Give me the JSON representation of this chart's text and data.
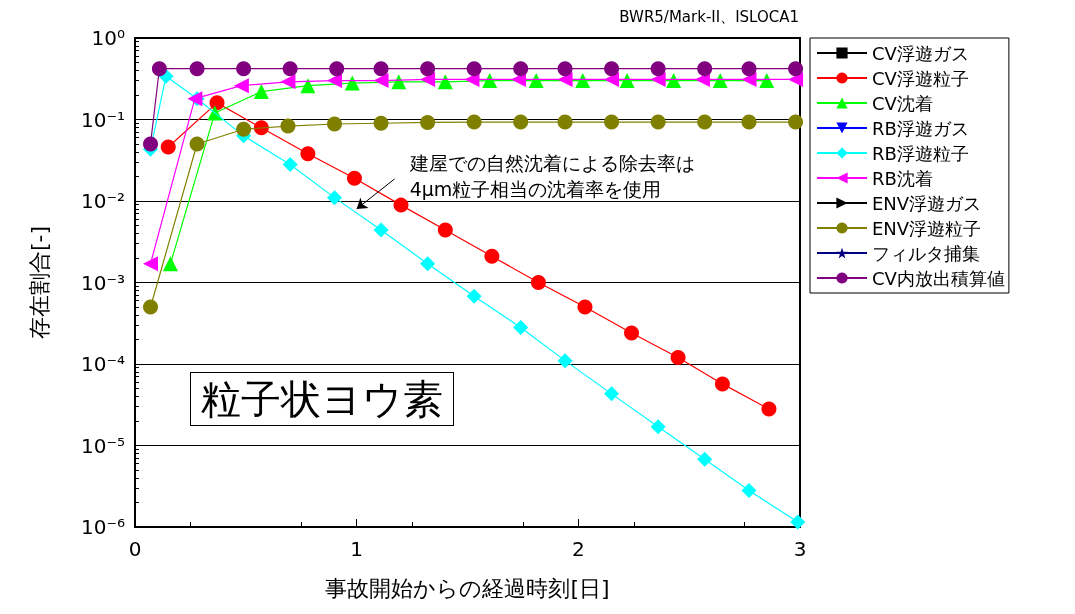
{
  "chart_data": {
    "type": "line",
    "subtitle": "BWR5/Mark-II、ISLOCA1",
    "xlabel": "事故開始からの経過時刻[日]",
    "ylabel": "存在割合[-]",
    "xlim": [
      0,
      3
    ],
    "xticks": [
      0,
      1,
      2,
      3
    ],
    "ylim": [
      1e-06,
      1
    ],
    "yticks": [
      {
        "value": 1e-06,
        "label": "10⁻⁶"
      },
      {
        "value": 1e-05,
        "label": "10⁻⁵"
      },
      {
        "value": 0.0001,
        "label": "10⁻⁴"
      },
      {
        "value": 0.001,
        "label": "10⁻³"
      },
      {
        "value": 0.01,
        "label": "10⁻²"
      },
      {
        "value": 0.1,
        "label": "10⁻¹"
      },
      {
        "value": 1,
        "label": "10⁰"
      }
    ],
    "log": "y",
    "grid": "y",
    "legend": "right",
    "annotations": [
      {
        "text": "建屋での自然沈着による除去率は\n4μm粒子相当の沈着率を使用",
        "x": 1.0,
        "y": 0.008
      },
      "粒子状ヨウ素"
    ],
    "series": [
      {
        "name": "CV浮遊ガス",
        "color": "#000000",
        "marker": "square"
      },
      {
        "name": "CV浮遊粒子",
        "color": "#ff0000",
        "marker": "circle",
        "x": [
          0.15,
          0.37,
          0.57,
          0.78,
          0.99,
          1.2,
          1.4,
          1.61,
          1.82,
          2.03,
          2.24,
          2.45,
          2.65,
          2.86
        ],
        "values": [
          0.046,
          0.16,
          0.079,
          0.038,
          0.019,
          0.0089,
          0.0044,
          0.0021,
          0.001,
          0.0005,
          0.00024,
          0.00012,
          5.7e-05,
          2.8e-05
        ]
      },
      {
        "name": "CV沈着",
        "color": "#00ff00",
        "marker": "triangle",
        "x": [
          0.16,
          0.36,
          0.57,
          0.78,
          0.98,
          1.19,
          1.4,
          1.6,
          1.81,
          2.02,
          2.22,
          2.43,
          2.64,
          2.85
        ],
        "values": [
          0.0017,
          0.12,
          0.22,
          0.26,
          0.28,
          0.29,
          0.29,
          0.3,
          0.3,
          0.3,
          0.3,
          0.3,
          0.3,
          0.3
        ]
      },
      {
        "name": "RB浮遊ガス",
        "color": "#0000ff",
        "marker": "triangle-down"
      },
      {
        "name": "RB浮遊粒子",
        "color": "#00ffff",
        "marker": "diamond",
        "x": [
          0.07,
          0.14,
          0.28,
          0.49,
          0.7,
          0.9,
          1.11,
          1.32,
          1.53,
          1.74,
          1.94,
          2.15,
          2.36,
          2.57,
          2.77,
          2.99
        ],
        "values": [
          0.043,
          0.34,
          0.18,
          0.063,
          0.028,
          0.011,
          0.0044,
          0.0017,
          0.00068,
          0.00028,
          0.00011,
          4.3e-05,
          1.7e-05,
          6.8e-06,
          2.8e-06,
          1.15e-06
        ]
      },
      {
        "name": "RB沈着",
        "color": "#ff00ff",
        "marker": "triangle-left",
        "x": [
          0.07,
          0.27,
          0.48,
          0.69,
          0.9,
          1.11,
          1.32,
          1.52,
          1.73,
          1.94,
          2.15,
          2.36,
          2.56,
          2.77,
          2.98
        ],
        "values": [
          0.0017,
          0.18,
          0.26,
          0.29,
          0.3,
          0.3,
          0.31,
          0.31,
          0.31,
          0.31,
          0.31,
          0.31,
          0.31,
          0.31,
          0.31
        ]
      },
      {
        "name": "ENV浮遊ガス",
        "color": "#000000",
        "marker": "triangle-right"
      },
      {
        "name": "ENV浮遊粒子",
        "color": "#808000",
        "marker": "circle",
        "x": [
          0.07,
          0.28,
          0.49,
          0.69,
          0.9,
          1.11,
          1.32,
          1.53,
          1.74,
          1.94,
          2.15,
          2.36,
          2.57,
          2.77,
          2.98
        ],
        "values": [
          0.0005,
          0.05,
          0.076,
          0.083,
          0.088,
          0.09,
          0.092,
          0.093,
          0.093,
          0.093,
          0.093,
          0.093,
          0.093,
          0.093,
          0.093
        ]
      },
      {
        "name": "フィルタ捕集",
        "color": "#000080",
        "marker": "star"
      },
      {
        "name": "CV内放出積算値",
        "color": "#800080",
        "marker": "circle",
        "x": [
          0.07,
          0.11,
          0.28,
          0.49,
          0.7,
          0.91,
          1.11,
          1.32,
          1.53,
          1.74,
          1.94,
          2.15,
          2.36,
          2.57,
          2.77,
          2.98
        ],
        "values": [
          0.05,
          0.42,
          0.42,
          0.42,
          0.42,
          0.42,
          0.42,
          0.42,
          0.42,
          0.42,
          0.42,
          0.42,
          0.42,
          0.42,
          0.42,
          0.42
        ]
      }
    ]
  }
}
